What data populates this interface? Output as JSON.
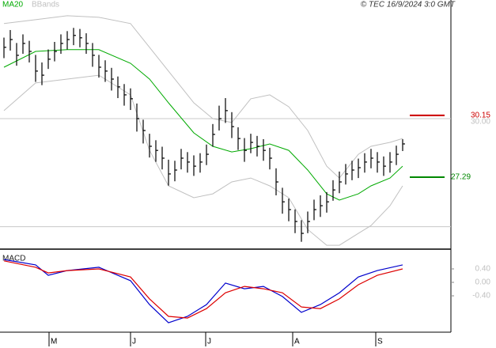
{
  "chart_data": [
    {
      "type": "ohlc",
      "legend": [
        {
          "name": "MA20",
          "color": "#00aa00"
        },
        {
          "name": "BBands",
          "color": "#c0c0c0"
        }
      ],
      "source": "© TEC 16/9/2024 3:0 GMT",
      "xlim": [
        -0.625,
        77.75
      ],
      "ylim": [
        23.96,
        35.49
      ],
      "yticks": [
        {
          "value": 30,
          "label": "30.00"
        }
      ],
      "gridlines": [
        25,
        30
      ],
      "bar_color": "#000000",
      "high": [
        33.75,
        34.1,
        33.5,
        33.9,
        33.6,
        32.95,
        32.6,
        33.2,
        33.55,
        33.9,
        34.05,
        34.2,
        34.15,
        33.95,
        33.5,
        32.95,
        32.7,
        32.35,
        31.95,
        31.6,
        31.4,
        30.7,
        29.95,
        29.3,
        29.0,
        28.7,
        28.1,
        28.05,
        28.6,
        28.45,
        28.3,
        28.4,
        28.8,
        29.75,
        30.6,
        30.95,
        30.3,
        29.6,
        29.1,
        29.3,
        29.2,
        29.05,
        28.65,
        27.7,
        26.8,
        26.3,
        25.8,
        25.3,
        25.7,
        26.25,
        26.45,
        26.6,
        27.15,
        27.55,
        27.9,
        28.05,
        28.15,
        28.4,
        28.6,
        28.45,
        28.25,
        28.45,
        28.75,
        29.05
      ],
      "low": [
        32.8,
        33.15,
        32.45,
        33.0,
        32.6,
        31.7,
        31.55,
        32.3,
        32.65,
        33.0,
        33.2,
        33.4,
        33.3,
        33.0,
        32.4,
        31.9,
        31.7,
        31.3,
        30.95,
        30.6,
        30.4,
        29.4,
        28.85,
        28.2,
        28.0,
        27.65,
        26.9,
        27.1,
        27.65,
        27.5,
        27.35,
        27.5,
        27.85,
        28.7,
        29.45,
        29.8,
        29.1,
        28.55,
        28.0,
        28.4,
        28.25,
        28.05,
        27.65,
        26.45,
        25.6,
        25.25,
        24.7,
        24.3,
        24.7,
        25.3,
        25.45,
        25.65,
        26.2,
        26.55,
        26.95,
        27.15,
        27.25,
        27.5,
        27.7,
        27.5,
        27.35,
        27.5,
        27.85,
        28.5
      ],
      "close": [
        33.3,
        33.66,
        32.93,
        33.48,
        33.11,
        32.2,
        32.01,
        32.75,
        33.11,
        33.48,
        33.66,
        33.85,
        33.74,
        33.48,
        32.93,
        32.38,
        32.2,
        31.83,
        31.47,
        31.1,
        30.92,
        30.0,
        29.45,
        28.72,
        28.53,
        28.17,
        27.44,
        27.62,
        28.17,
        27.99,
        27.8,
        27.99,
        28.35,
        29.27,
        30.0,
        30.37,
        29.63,
        29.08,
        28.53,
        28.9,
        28.72,
        28.53,
        28.17,
        27.07,
        26.15,
        25.79,
        25.24,
        24.69,
        25.24,
        25.79,
        25.97,
        26.15,
        26.7,
        27.07,
        27.44,
        27.62,
        27.73,
        27.99,
        28.17,
        27.99,
        27.8,
        27.99,
        28.35,
        28.83
      ],
      "lines_x": [
        0,
        5,
        10,
        15,
        20,
        23,
        26,
        30,
        33,
        36,
        39,
        42,
        45,
        48,
        51,
        53,
        56,
        58,
        61,
        63
      ],
      "ma20": [
        32.38,
        33.11,
        33.19,
        33.19,
        32.56,
        31.83,
        30.73,
        29.34,
        28.72,
        28.46,
        28.61,
        28.83,
        28.53,
        27.62,
        26.52,
        26.23,
        26.52,
        26.89,
        27.25,
        27.8
      ],
      "bb_upper": [
        34.4,
        34.58,
        34.76,
        34.69,
        34.4,
        33.3,
        32.2,
        30.73,
        30.0,
        29.82,
        30.92,
        31.1,
        30.55,
        29.45,
        27.8,
        27.25,
        28.35,
        28.72,
        28.9,
        29.08
      ],
      "bb_lower": [
        30.37,
        31.65,
        31.83,
        32.01,
        31.1,
        28.53,
        26.89,
        26.34,
        26.52,
        27.07,
        27.25,
        26.89,
        26.34,
        24.87,
        24.14,
        24.14,
        24.69,
        25.05,
        25.97,
        26.89
      ],
      "annotations": [
        {
          "value": 30.15,
          "color": "#cc0000"
        },
        {
          "value": 27.29,
          "color": "#008800"
        }
      ]
    },
    {
      "type": "macd",
      "title": "MACD",
      "xlim": [
        -0.625,
        77.75
      ],
      "ylim": [
        -1.48,
        0.94
      ],
      "yticks": [
        {
          "value": 0.4,
          "label": "0.40"
        },
        {
          "value": 0,
          "label": "0.00"
        },
        {
          "value": -0.4,
          "label": "-0.40"
        }
      ],
      "xticks": [
        {
          "value": 7.125,
          "label": "M"
        },
        {
          "value": 20,
          "label": "J"
        },
        {
          "value": 31.875,
          "label": "J"
        },
        {
          "value": 45.625,
          "label": "A"
        },
        {
          "value": 58.75,
          "label": "S"
        }
      ],
      "series": [
        {
          "color": "#0000cc",
          "x": [
            0,
            5,
            7,
            10,
            15,
            20,
            23,
            26,
            29,
            32,
            35,
            38,
            41,
            44,
            47,
            50,
            53,
            56,
            59,
            63
          ],
          "values": [
            0.68,
            0.52,
            0.21,
            0.35,
            0.45,
            0.05,
            -0.66,
            -1.2,
            -1.01,
            -0.66,
            -0.02,
            -0.19,
            -0.12,
            -0.42,
            -0.89,
            -0.66,
            -0.31,
            0.16,
            0.35,
            0.52
          ]
        },
        {
          "color": "#dd0000",
          "x": [
            0,
            5,
            7,
            10,
            15,
            20,
            23,
            26,
            29,
            32,
            35,
            38,
            41,
            44,
            47,
            50,
            53,
            56,
            59,
            63
          ],
          "values": [
            0.64,
            0.45,
            0.28,
            0.35,
            0.4,
            0.16,
            -0.49,
            -1.01,
            -1.06,
            -0.78,
            -0.31,
            -0.12,
            -0.19,
            -0.31,
            -0.73,
            -0.78,
            -0.49,
            -0.07,
            0.21,
            0.4
          ]
        }
      ]
    }
  ]
}
